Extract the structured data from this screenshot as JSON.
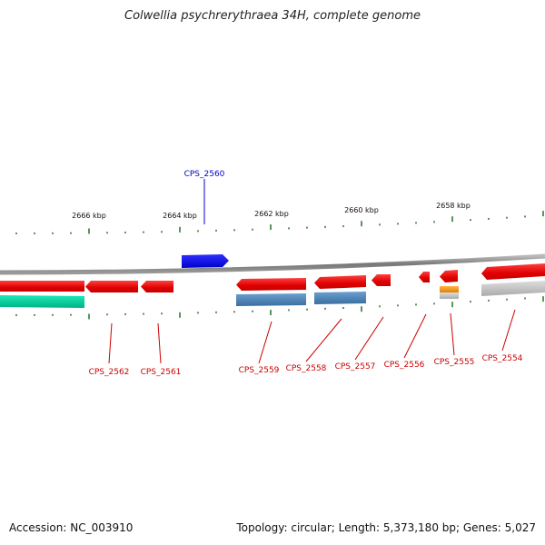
{
  "title": "Colwellia psychrerythraea 34H, complete genome",
  "footer": {
    "accession": "Accession: NC_003910",
    "summary": "Topology: circular; Length: 5,373,180 bp; Genes: 5,027"
  },
  "scale_labels": [
    "2666 kbp",
    "2664 kbp",
    "2662 kbp",
    "2660 kbp",
    "2658 kbp"
  ],
  "gene_labels": [
    {
      "id": "CPS_2560",
      "color": "#0000cc"
    },
    {
      "id": "CPS_2562",
      "color": "#cc0000"
    },
    {
      "id": "CPS_2561",
      "color": "#cc0000"
    },
    {
      "id": "CPS_2559",
      "color": "#cc0000"
    },
    {
      "id": "CPS_2558",
      "color": "#cc0000"
    },
    {
      "id": "CPS_2557",
      "color": "#cc0000"
    },
    {
      "id": "CPS_2556",
      "color": "#cc0000"
    },
    {
      "id": "CPS_2555",
      "color": "#cc0000"
    },
    {
      "id": "CPS_2554",
      "color": "#cc0000"
    }
  ],
  "colors": {
    "forward_gene": "#0000ee",
    "reverse_gene": "#ee0000",
    "rna_gene": "#2a9d8f",
    "misc_feature": "#4682b4",
    "orange_feature": "#f39c12",
    "gray_feature": "#aaaaaa",
    "backbone": "#777777",
    "tick": "#2e7d32"
  }
}
